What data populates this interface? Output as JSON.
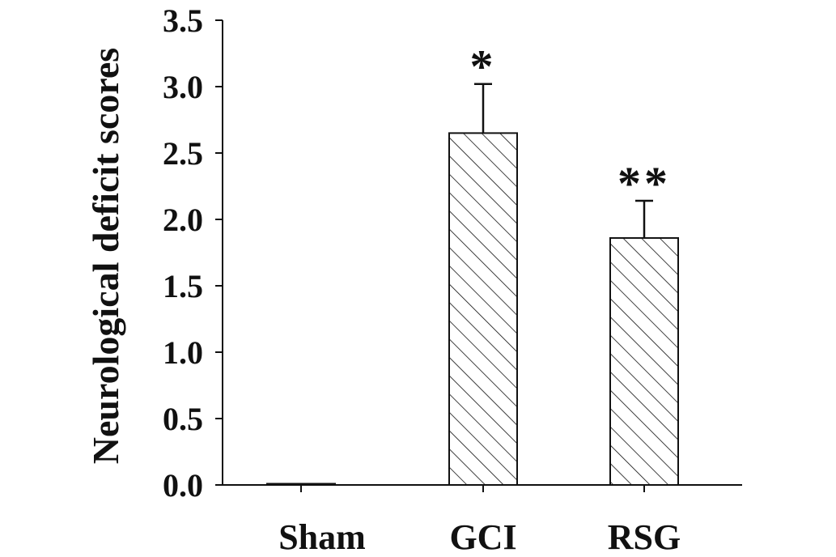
{
  "chart_data": {
    "type": "bar",
    "title": "",
    "xlabel": "",
    "ylabel": "Neurological deficit scores",
    "ylim": [
      0,
      3.5
    ],
    "yticks": [
      "0.0",
      "0.5",
      "1.0",
      "1.5",
      "2.0",
      "2.5",
      "3.0",
      "3.5"
    ],
    "categories": [
      "Sham",
      "GCI",
      "RSG"
    ],
    "values": [
      0.0,
      2.65,
      1.86
    ],
    "errors": [
      0.0,
      0.37,
      0.28
    ],
    "annotations": [
      "",
      "*",
      "**"
    ],
    "bar_fill": "hatched-diagonal",
    "grid": false,
    "legend": "none"
  },
  "colors": {
    "ink": "#111111",
    "background": "#ffffff"
  }
}
